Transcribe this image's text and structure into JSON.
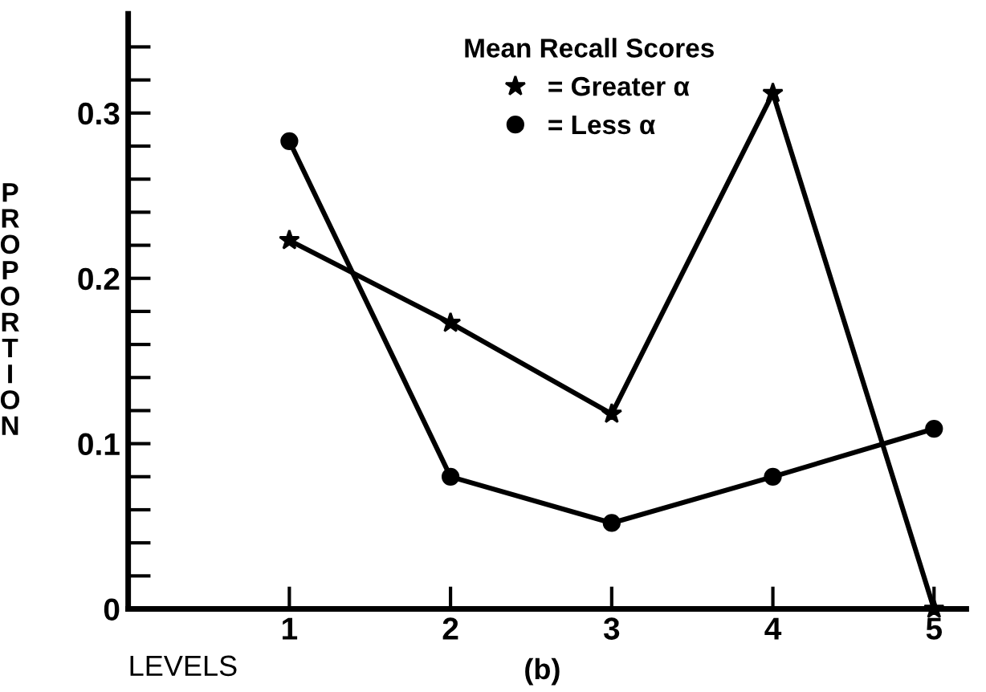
{
  "chart_data": {
    "type": "line",
    "legend_title": "Mean Recall Scores",
    "xlabel": "LEVELS",
    "ylabel": "PROPORTION",
    "annotations": [
      "(b)"
    ],
    "x": [
      1,
      2,
      3,
      4,
      5
    ],
    "series": [
      {
        "name": "= Greater α",
        "color": "#000000",
        "marker": "star",
        "values": [
          0.223,
          0.173,
          0.118,
          0.312,
          0
        ]
      },
      {
        "name": "= Less α",
        "color": "#000000",
        "marker": "circle",
        "values": [
          0.283,
          0.08,
          0.052,
          0.08,
          0.109
        ]
      }
    ],
    "xlim": [
      0,
      5.2
    ],
    "xticks": [
      1,
      2,
      3,
      4,
      5
    ],
    "ylim": [
      0,
      0.36
    ],
    "yticks": [
      0,
      {
        "value": 0.02,
        "label": null
      },
      {
        "value": 0.04,
        "label": null
      },
      {
        "value": 0.06,
        "label": null
      },
      {
        "value": 0.08,
        "label": null
      },
      0.1,
      {
        "value": 0.12,
        "label": null
      },
      {
        "value": 0.14,
        "label": null
      },
      {
        "value": 0.16,
        "label": null
      },
      {
        "value": 0.18,
        "label": null
      },
      0.2,
      {
        "value": 0.22,
        "label": null
      },
      {
        "value": 0.24,
        "label": null
      },
      {
        "value": 0.26,
        "label": null
      },
      {
        "value": 0.28,
        "label": null
      },
      0.3,
      {
        "value": 0.32,
        "label": null
      },
      {
        "value": 0.34,
        "label": null
      }
    ],
    "grid": false,
    "legend": "top",
    "line_style": "solid"
  }
}
